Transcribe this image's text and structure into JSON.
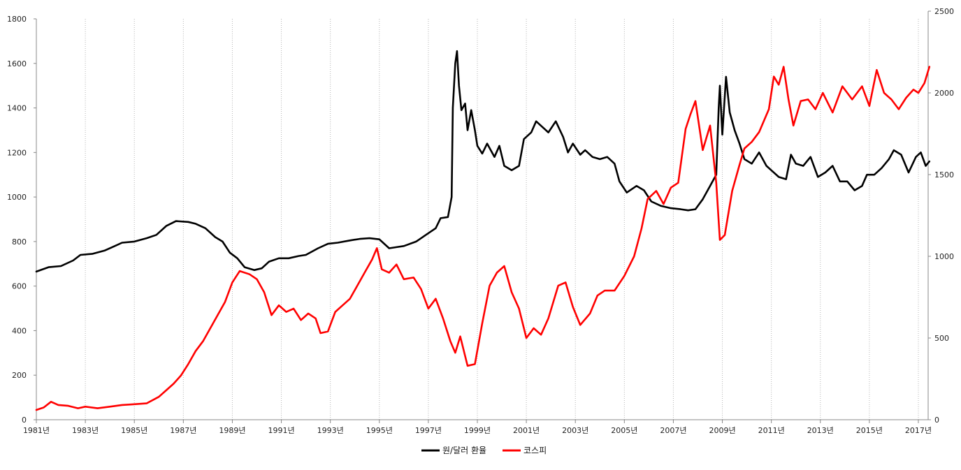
{
  "chart_data": {
    "type": "line",
    "x_ticks": [
      "1981년",
      "1983년",
      "1985년",
      "1987년",
      "1989년",
      "1991년",
      "1993년",
      "1995년",
      "1997년",
      "1999년",
      "2001년",
      "2003년",
      "2005년",
      "2007년",
      "2009년",
      "2011년",
      "2013년",
      "2015년",
      "2017년"
    ],
    "x_range": [
      1981,
      2017.4
    ],
    "y_left": {
      "ticks": [
        "0",
        "200",
        "400",
        "600",
        "800",
        "1000",
        "1200",
        "1400",
        "1600",
        "1800"
      ],
      "range": [
        0,
        1800
      ]
    },
    "y_right": {
      "ticks": [
        "0",
        "500",
        "1000",
        "1500",
        "2000",
        "2500"
      ],
      "range": [
        0,
        2500
      ]
    },
    "grid": "vertical dotted lines at each x tick",
    "legend_position": "bottom-center",
    "series": [
      {
        "name": "원/달러 환율",
        "color": "#000000",
        "axis": "left",
        "points": [
          [
            1981.0,
            665
          ],
          [
            1981.5,
            685
          ],
          [
            1982.0,
            690
          ],
          [
            1982.5,
            715
          ],
          [
            1982.8,
            740
          ],
          [
            1983.3,
            745
          ],
          [
            1983.8,
            760
          ],
          [
            1984.2,
            780
          ],
          [
            1984.5,
            795
          ],
          [
            1985.0,
            800
          ],
          [
            1985.5,
            815
          ],
          [
            1985.9,
            830
          ],
          [
            1986.3,
            870
          ],
          [
            1986.7,
            892
          ],
          [
            1987.2,
            888
          ],
          [
            1987.5,
            880
          ],
          [
            1987.9,
            860
          ],
          [
            1988.3,
            820
          ],
          [
            1988.6,
            800
          ],
          [
            1988.9,
            750
          ],
          [
            1989.2,
            725
          ],
          [
            1989.5,
            685
          ],
          [
            1989.9,
            672
          ],
          [
            1990.2,
            680
          ],
          [
            1990.5,
            710
          ],
          [
            1990.9,
            725
          ],
          [
            1991.3,
            725
          ],
          [
            1991.7,
            735
          ],
          [
            1992.0,
            740
          ],
          [
            1992.5,
            770
          ],
          [
            1992.9,
            790
          ],
          [
            1993.3,
            795
          ],
          [
            1993.8,
            805
          ],
          [
            1994.2,
            812
          ],
          [
            1994.6,
            815
          ],
          [
            1995.0,
            810
          ],
          [
            1995.4,
            770
          ],
          [
            1995.7,
            775
          ],
          [
            1996.0,
            780
          ],
          [
            1996.5,
            800
          ],
          [
            1996.9,
            830
          ],
          [
            1997.3,
            860
          ],
          [
            1997.5,
            905
          ],
          [
            1997.8,
            910
          ],
          [
            1997.95,
            1000
          ],
          [
            1998.0,
            1400
          ],
          [
            1998.1,
            1600
          ],
          [
            1998.17,
            1655
          ],
          [
            1998.25,
            1500
          ],
          [
            1998.35,
            1390
          ],
          [
            1998.5,
            1420
          ],
          [
            1998.6,
            1300
          ],
          [
            1998.75,
            1390
          ],
          [
            1998.9,
            1300
          ],
          [
            1999.0,
            1230
          ],
          [
            1999.2,
            1195
          ],
          [
            1999.4,
            1240
          ],
          [
            1999.7,
            1180
          ],
          [
            1999.9,
            1230
          ],
          [
            2000.1,
            1140
          ],
          [
            2000.4,
            1120
          ],
          [
            2000.7,
            1140
          ],
          [
            2000.9,
            1260
          ],
          [
            2001.2,
            1290
          ],
          [
            2001.4,
            1340
          ],
          [
            2001.6,
            1320
          ],
          [
            2001.9,
            1290
          ],
          [
            2002.2,
            1340
          ],
          [
            2002.5,
            1270
          ],
          [
            2002.7,
            1200
          ],
          [
            2002.9,
            1240
          ],
          [
            2003.2,
            1190
          ],
          [
            2003.4,
            1210
          ],
          [
            2003.7,
            1180
          ],
          [
            2004.0,
            1170
          ],
          [
            2004.3,
            1180
          ],
          [
            2004.6,
            1150
          ],
          [
            2004.8,
            1070
          ],
          [
            2005.1,
            1020
          ],
          [
            2005.5,
            1050
          ],
          [
            2005.8,
            1030
          ],
          [
            2006.1,
            980
          ],
          [
            2006.5,
            960
          ],
          [
            2006.9,
            950
          ],
          [
            2007.3,
            945
          ],
          [
            2007.6,
            940
          ],
          [
            2007.9,
            945
          ],
          [
            2008.2,
            990
          ],
          [
            2008.5,
            1050
          ],
          [
            2008.75,
            1100
          ],
          [
            2008.85,
            1400
          ],
          [
            2008.9,
            1500
          ],
          [
            2009.0,
            1280
          ],
          [
            2009.15,
            1540
          ],
          [
            2009.3,
            1380
          ],
          [
            2009.5,
            1300
          ],
          [
            2009.7,
            1240
          ],
          [
            2009.9,
            1170
          ],
          [
            2010.2,
            1150
          ],
          [
            2010.5,
            1200
          ],
          [
            2010.8,
            1140
          ],
          [
            2011.0,
            1120
          ],
          [
            2011.3,
            1090
          ],
          [
            2011.6,
            1080
          ],
          [
            2011.8,
            1190
          ],
          [
            2012.0,
            1150
          ],
          [
            2012.3,
            1140
          ],
          [
            2012.6,
            1180
          ],
          [
            2012.9,
            1090
          ],
          [
            2013.2,
            1110
          ],
          [
            2013.5,
            1140
          ],
          [
            2013.8,
            1070
          ],
          [
            2014.1,
            1070
          ],
          [
            2014.4,
            1030
          ],
          [
            2014.7,
            1050
          ],
          [
            2014.9,
            1100
          ],
          [
            2015.2,
            1100
          ],
          [
            2015.5,
            1130
          ],
          [
            2015.8,
            1170
          ],
          [
            2016.0,
            1210
          ],
          [
            2016.3,
            1190
          ],
          [
            2016.6,
            1110
          ],
          [
            2016.9,
            1180
          ],
          [
            2017.1,
            1200
          ],
          [
            2017.3,
            1140
          ],
          [
            2017.45,
            1160
          ]
        ]
      },
      {
        "name": "코스피",
        "color": "#ff0000",
        "axis": "right",
        "points": [
          [
            1981.0,
            60
          ],
          [
            1981.3,
            75
          ],
          [
            1981.6,
            110
          ],
          [
            1981.9,
            90
          ],
          [
            1982.3,
            85
          ],
          [
            1982.7,
            70
          ],
          [
            1983.0,
            80
          ],
          [
            1983.5,
            70
          ],
          [
            1984.0,
            80
          ],
          [
            1984.5,
            90
          ],
          [
            1985.0,
            95
          ],
          [
            1985.5,
            100
          ],
          [
            1986.0,
            140
          ],
          [
            1986.3,
            180
          ],
          [
            1986.6,
            220
          ],
          [
            1986.9,
            270
          ],
          [
            1987.2,
            340
          ],
          [
            1987.5,
            420
          ],
          [
            1987.8,
            480
          ],
          [
            1988.1,
            560
          ],
          [
            1988.4,
            640
          ],
          [
            1988.7,
            720
          ],
          [
            1989.0,
            840
          ],
          [
            1989.3,
            910
          ],
          [
            1989.7,
            890
          ],
          [
            1990.0,
            860
          ],
          [
            1990.3,
            780
          ],
          [
            1990.6,
            640
          ],
          [
            1990.9,
            700
          ],
          [
            1991.2,
            660
          ],
          [
            1991.5,
            680
          ],
          [
            1991.8,
            610
          ],
          [
            1992.1,
            650
          ],
          [
            1992.4,
            620
          ],
          [
            1992.6,
            530
          ],
          [
            1992.9,
            540
          ],
          [
            1993.2,
            660
          ],
          [
            1993.5,
            700
          ],
          [
            1993.8,
            740
          ],
          [
            1994.1,
            820
          ],
          [
            1994.4,
            900
          ],
          [
            1994.7,
            980
          ],
          [
            1994.9,
            1050
          ],
          [
            1995.1,
            920
          ],
          [
            1995.4,
            900
          ],
          [
            1995.7,
            950
          ],
          [
            1996.0,
            860
          ],
          [
            1996.4,
            870
          ],
          [
            1996.7,
            800
          ],
          [
            1997.0,
            680
          ],
          [
            1997.3,
            740
          ],
          [
            1997.6,
            620
          ],
          [
            1997.9,
            480
          ],
          [
            1998.1,
            410
          ],
          [
            1998.3,
            510
          ],
          [
            1998.6,
            330
          ],
          [
            1998.9,
            340
          ],
          [
            1999.2,
            590
          ],
          [
            1999.5,
            820
          ],
          [
            1999.8,
            900
          ],
          [
            2000.1,
            940
          ],
          [
            2000.4,
            780
          ],
          [
            2000.7,
            680
          ],
          [
            2001.0,
            500
          ],
          [
            2001.3,
            560
          ],
          [
            2001.6,
            520
          ],
          [
            2001.9,
            620
          ],
          [
            2002.3,
            820
          ],
          [
            2002.6,
            840
          ],
          [
            2002.9,
            690
          ],
          [
            2003.2,
            580
          ],
          [
            2003.6,
            650
          ],
          [
            2003.9,
            760
          ],
          [
            2004.2,
            790
          ],
          [
            2004.6,
            790
          ],
          [
            2005.0,
            880
          ],
          [
            2005.4,
            1000
          ],
          [
            2005.7,
            1170
          ],
          [
            2005.95,
            1350
          ],
          [
            2006.3,
            1400
          ],
          [
            2006.6,
            1320
          ],
          [
            2006.9,
            1420
          ],
          [
            2007.2,
            1450
          ],
          [
            2007.5,
            1780
          ],
          [
            2007.7,
            1870
          ],
          [
            2007.9,
            1950
          ],
          [
            2008.2,
            1650
          ],
          [
            2008.5,
            1800
          ],
          [
            2008.75,
            1450
          ],
          [
            2008.9,
            1100
          ],
          [
            2009.1,
            1130
          ],
          [
            2009.4,
            1400
          ],
          [
            2009.7,
            1560
          ],
          [
            2009.9,
            1660
          ],
          [
            2010.2,
            1700
          ],
          [
            2010.5,
            1760
          ],
          [
            2010.9,
            1900
          ],
          [
            2011.1,
            2100
          ],
          [
            2011.3,
            2050
          ],
          [
            2011.5,
            2160
          ],
          [
            2011.7,
            1960
          ],
          [
            2011.9,
            1800
          ],
          [
            2012.2,
            1950
          ],
          [
            2012.5,
            1960
          ],
          [
            2012.8,
            1900
          ],
          [
            2013.1,
            2000
          ],
          [
            2013.5,
            1880
          ],
          [
            2013.9,
            2040
          ],
          [
            2014.3,
            1960
          ],
          [
            2014.7,
            2040
          ],
          [
            2015.0,
            1920
          ],
          [
            2015.3,
            2140
          ],
          [
            2015.6,
            2000
          ],
          [
            2015.9,
            1960
          ],
          [
            2016.2,
            1900
          ],
          [
            2016.5,
            1970
          ],
          [
            2016.8,
            2020
          ],
          [
            2017.0,
            2000
          ],
          [
            2017.25,
            2060
          ],
          [
            2017.45,
            2160
          ]
        ]
      }
    ]
  }
}
